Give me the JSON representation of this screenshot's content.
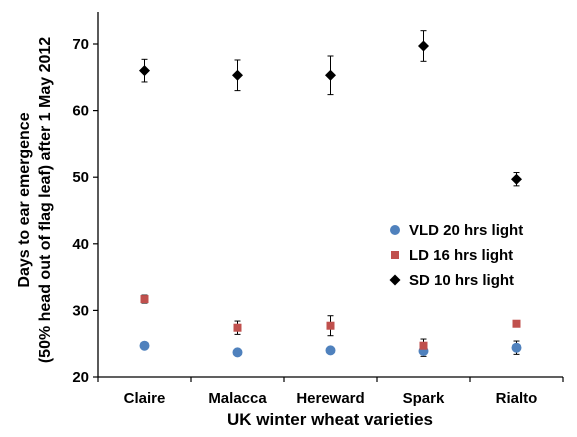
{
  "chart_data": {
    "type": "scatter",
    "categories": [
      "Claire",
      "Malacca",
      "Hereward",
      "Spark",
      "Rialto"
    ],
    "xlabel": "UK winter wheat varieties",
    "ylabel_line1": "Days to ear emergence",
    "ylabel_line2": "(50% head out of flag leaf) after 1 May 2012",
    "ylim": [
      20,
      75
    ],
    "yticks": [
      20,
      30,
      40,
      50,
      60,
      70
    ],
    "grid": false,
    "legend_position": "middle-right",
    "series": [
      {
        "name": "VLD 20 hrs light",
        "marker": "circle",
        "color": "#4f81bd",
        "values": [
          24.7,
          23.7,
          24.0,
          23.9,
          24.4
        ],
        "errors": [
          0.3,
          0.4,
          0.3,
          0.8,
          1.0
        ]
      },
      {
        "name": "LD 16 hrs light",
        "marker": "square",
        "color": "#c0504d",
        "values": [
          31.7,
          27.4,
          27.7,
          24.7,
          28.0
        ],
        "errors": [
          0.6,
          1.0,
          1.5,
          1.0,
          0.3
        ]
      },
      {
        "name": "SD 10 hrs light",
        "marker": "diamond",
        "color": "#000000",
        "values": [
          66.0,
          65.3,
          65.3,
          69.7,
          49.7
        ],
        "errors": [
          1.7,
          2.3,
          2.9,
          2.3,
          1.0
        ]
      }
    ]
  }
}
